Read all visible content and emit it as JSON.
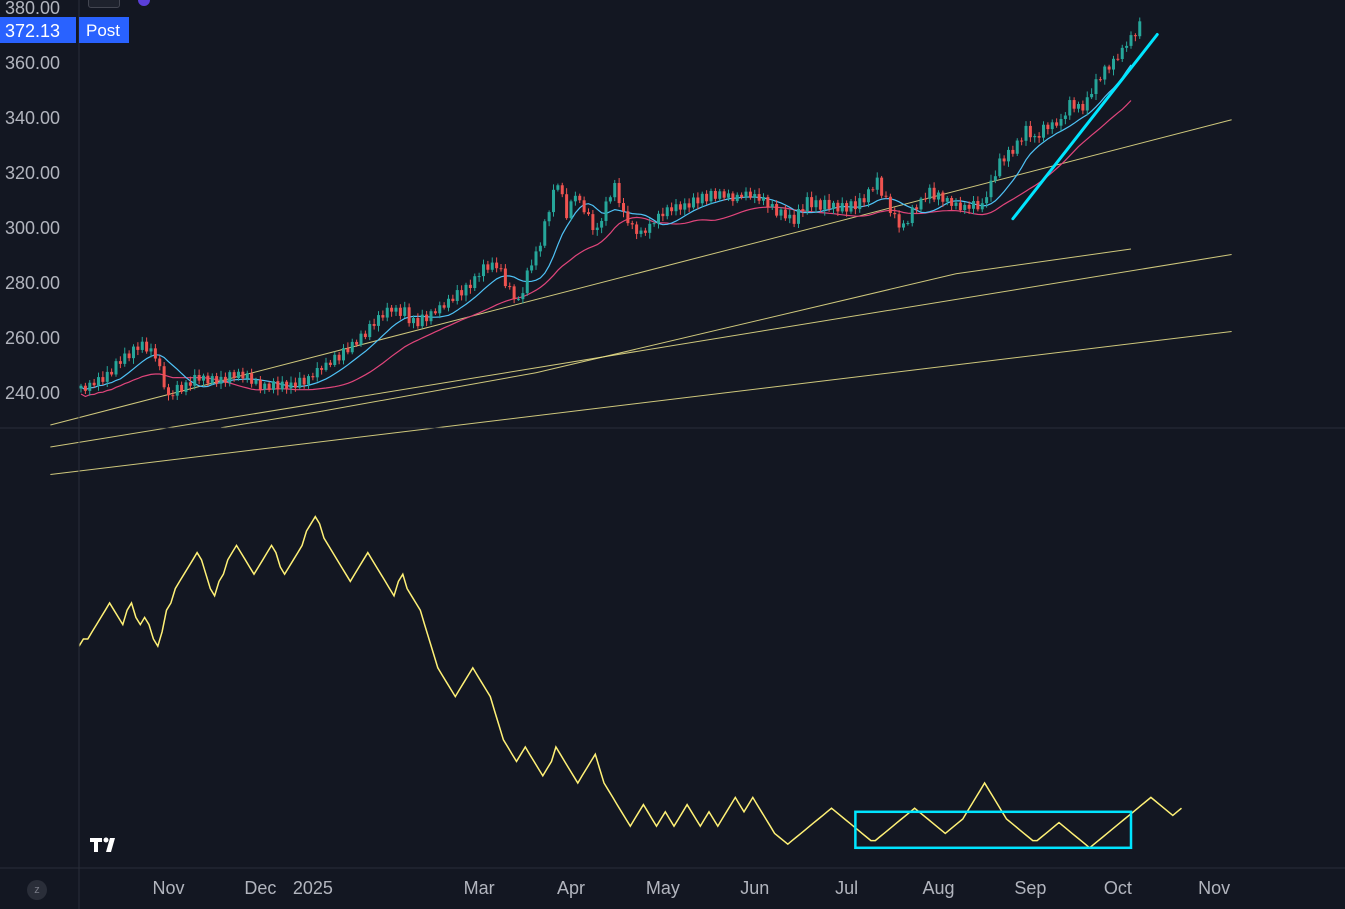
{
  "chart_data": [
    {
      "type": "candlestick",
      "panel": "price",
      "y_ticks": [
        "380.00",
        "360.00",
        "340.00",
        "320.00",
        "300.00",
        "280.00",
        "260.00",
        "240.00"
      ],
      "y_tick_values": [
        380,
        360,
        340,
        320,
        300,
        280,
        260,
        240
      ],
      "ylim": [
        227,
        381
      ],
      "last_price_label": "372.13",
      "session_label": "Post",
      "colors": {
        "up": "#26a69a",
        "down": "#ef5350",
        "ma_fast": "#4fc3f7",
        "ma_slow": "#e0457b",
        "trendline": "#f0e68c",
        "highlight": "#00e5ff"
      },
      "date_anchors": [
        [
          "2024-10-17",
          0
        ],
        [
          "2024-11-15",
          20
        ],
        [
          "2024-12-16",
          41
        ],
        [
          "2025-01-02",
          53
        ],
        [
          "2025-03-03",
          91
        ],
        [
          "2025-04-01",
          112
        ],
        [
          "2025-05-01",
          133
        ],
        [
          "2025-06-02",
          154
        ],
        [
          "2025-07-01",
          175
        ],
        [
          "2025-08-01",
          196
        ],
        [
          "2025-09-02",
          217
        ],
        [
          "2025-10-01",
          237
        ],
        [
          "2025-10-08",
          242
        ]
      ],
      "close_anchors": [
        [
          0,
          241
        ],
        [
          5,
          245
        ],
        [
          10,
          253
        ],
        [
          14,
          257
        ],
        [
          17,
          253
        ],
        [
          20,
          238
        ],
        [
          23,
          242
        ],
        [
          27,
          245
        ],
        [
          31,
          244
        ],
        [
          34,
          246
        ],
        [
          38,
          246
        ],
        [
          41,
          242
        ],
        [
          44,
          243
        ],
        [
          48,
          242
        ],
        [
          52,
          245
        ],
        [
          56,
          250
        ],
        [
          60,
          254
        ],
        [
          64,
          260
        ],
        [
          68,
          267
        ],
        [
          71,
          270
        ],
        [
          74,
          269
        ],
        [
          76,
          265
        ],
        [
          80,
          268
        ],
        [
          84,
          273
        ],
        [
          88,
          278
        ],
        [
          92,
          285
        ],
        [
          95,
          287
        ],
        [
          98,
          277
        ],
        [
          100,
          273
        ],
        [
          103,
          287
        ],
        [
          105,
          294
        ],
        [
          107,
          307
        ],
        [
          109,
          317
        ],
        [
          111,
          305
        ],
        [
          113,
          312
        ],
        [
          115,
          306
        ],
        [
          118,
          298
        ],
        [
          120,
          308
        ],
        [
          122,
          315
        ],
        [
          124,
          305
        ],
        [
          126,
          300
        ],
        [
          128,
          297
        ],
        [
          131,
          302
        ],
        [
          134,
          306
        ],
        [
          138,
          308
        ],
        [
          142,
          311
        ],
        [
          146,
          312
        ],
        [
          150,
          311
        ],
        [
          152,
          312
        ],
        [
          155,
          311
        ],
        [
          158,
          307
        ],
        [
          160,
          305
        ],
        [
          163,
          303
        ],
        [
          166,
          309
        ],
        [
          170,
          308
        ],
        [
          174,
          307
        ],
        [
          178,
          309
        ],
        [
          182,
          316
        ],
        [
          186,
          303
        ],
        [
          188,
          300
        ],
        [
          191,
          308
        ],
        [
          194,
          313
        ],
        [
          198,
          309
        ],
        [
          202,
          307
        ],
        [
          206,
          308
        ],
        [
          208,
          316
        ],
        [
          210,
          324
        ],
        [
          214,
          330
        ],
        [
          216,
          335
        ],
        [
          218,
          332
        ],
        [
          221,
          337
        ],
        [
          224,
          338
        ],
        [
          226,
          345
        ],
        [
          229,
          343
        ],
        [
          231,
          350
        ],
        [
          233,
          355
        ],
        [
          235,
          358
        ],
        [
          238,
          364
        ],
        [
          240,
          369
        ],
        [
          242,
          373
        ]
      ],
      "ma_fast": {
        "start": 0,
        "end": 240,
        "window": 10
      },
      "ma_slow": {
        "start": 0,
        "end": 240,
        "window": 22
      },
      "trendlines": [
        {
          "from": [
            -7,
            228
          ],
          "to": [
            263,
            339
          ]
        },
        {
          "from": [
            -7,
            220
          ],
          "to": [
            263,
            290
          ]
        },
        {
          "from": [
            -7,
            210
          ],
          "to": [
            263,
            262
          ]
        },
        {
          "from": [
            32,
            227
          ],
          "to": [
            55,
            233
          ]
        },
        {
          "from": [
            55,
            233
          ],
          "to": [
            104,
            247
          ]
        },
        {
          "from": [
            104,
            247
          ],
          "to": [
            200,
            283
          ]
        },
        {
          "from": [
            200,
            283
          ],
          "to": [
            240,
            292
          ]
        }
      ],
      "highlight_line": {
        "from": [
          213,
          303
        ],
        "to": [
          246,
          370
        ]
      }
    },
    {
      "type": "line",
      "panel": "indicator",
      "ylim": [
        0,
        100
      ],
      "color": "#fff176",
      "y_values": [
        58,
        60,
        60,
        62,
        64,
        66,
        68,
        70,
        68,
        66,
        64,
        68,
        70,
        66,
        64,
        66,
        64,
        60,
        58,
        62,
        68,
        70,
        74,
        76,
        78,
        80,
        82,
        84,
        82,
        78,
        74,
        72,
        76,
        78,
        82,
        84,
        86,
        84,
        82,
        80,
        78,
        80,
        82,
        84,
        86,
        84,
        80,
        78,
        80,
        82,
        84,
        86,
        90,
        92,
        94,
        92,
        88,
        86,
        84,
        82,
        80,
        78,
        76,
        78,
        80,
        82,
        84,
        82,
        80,
        78,
        76,
        74,
        72,
        76,
        78,
        74,
        72,
        70,
        68,
        64,
        60,
        56,
        52,
        50,
        48,
        46,
        44,
        46,
        48,
        50,
        52,
        50,
        48,
        46,
        44,
        40,
        36,
        32,
        30,
        28,
        26,
        28,
        30,
        28,
        26,
        24,
        22,
        24,
        26,
        30,
        28,
        26,
        24,
        22,
        20,
        22,
        24,
        26,
        28,
        24,
        20,
        18,
        16,
        14,
        12,
        10,
        8,
        10,
        12,
        14,
        12,
        10,
        8,
        10,
        12,
        10,
        8,
        10,
        12,
        14,
        12,
        10,
        8,
        10,
        12,
        10,
        8,
        10,
        12,
        14,
        16,
        14,
        12,
        14,
        16,
        14,
        12,
        10,
        8,
        6,
        5,
        4,
        3,
        4,
        5,
        6,
        7,
        8,
        9,
        10,
        11,
        12,
        13,
        12,
        11,
        10,
        9,
        8,
        7,
        6,
        5,
        4,
        4,
        5,
        6,
        7,
        8,
        9,
        10,
        11,
        12,
        13,
        12,
        11,
        10,
        9,
        8,
        7,
        6,
        7,
        8,
        9,
        10,
        12,
        14,
        16,
        18,
        20,
        18,
        16,
        14,
        12,
        10,
        9,
        8,
        7,
        6,
        5,
        4,
        4,
        5,
        6,
        7,
        8,
        9,
        8,
        7,
        6,
        5,
        4,
        3,
        2,
        3,
        4,
        5,
        6,
        7,
        8,
        9,
        10,
        11,
        12,
        13,
        14,
        15,
        16,
        15,
        14,
        13,
        12,
        11,
        12,
        13
      ],
      "highlight_box": {
        "x_from": 177,
        "x_to": 240,
        "y_from": 2,
        "y_to": 12
      }
    }
  ],
  "x_axis": {
    "labels": [
      {
        "text": "Nov",
        "bar": 20
      },
      {
        "text": "Dec",
        "bar": 41
      },
      {
        "text": "2025",
        "bar": 53
      },
      {
        "text": "Mar",
        "bar": 91
      },
      {
        "text": "Apr",
        "bar": 112
      },
      {
        "text": "May",
        "bar": 133
      },
      {
        "text": "Jun",
        "bar": 154
      },
      {
        "text": "Jul",
        "bar": 175
      },
      {
        "text": "Aug",
        "bar": 196
      },
      {
        "text": "Sep",
        "bar": 217
      },
      {
        "text": "Oct",
        "bar": 237
      },
      {
        "text": "Nov",
        "bar": 259
      }
    ]
  },
  "ui": {
    "z_badge": "z"
  }
}
